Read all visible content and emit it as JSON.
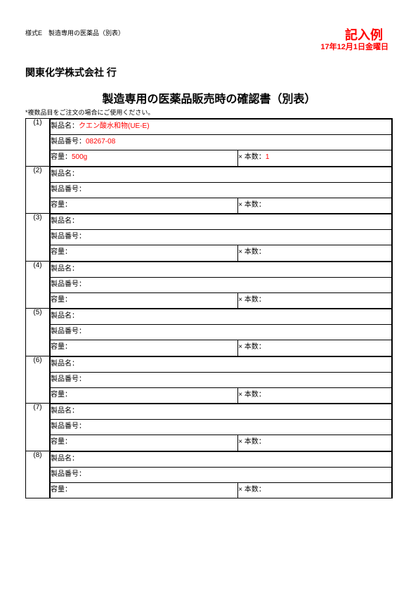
{
  "form_id": "様式E　製造専用の医薬品（別表）",
  "example_label": "記入例",
  "date": "17年12月1日金曜日",
  "addressee": "関東化学株式会社 行",
  "title": "製造専用の医薬品販売時の確認書（別表）",
  "note": "*複数品目をご注文の場合にご使用ください。",
  "labels": {
    "product_name": "製品名",
    "product_number": "製品番号",
    "volume": "容量",
    "quantity": "本数",
    "sep": "：",
    "times": "×"
  },
  "colors": {
    "red": "#ff0000",
    "black": "#000000",
    "background": "#ffffff"
  },
  "rows": [
    {
      "idx": "(1)",
      "name": "クエン酸水和物(UE-E)",
      "number": "08267-08",
      "volume": "500g",
      "qty": "1",
      "filled": true
    },
    {
      "idx": "(2)",
      "name": "",
      "number": "",
      "volume": "",
      "qty": "",
      "filled": false
    },
    {
      "idx": "(3)",
      "name": "",
      "number": "",
      "volume": "",
      "qty": "",
      "filled": false
    },
    {
      "idx": "(4)",
      "name": "",
      "number": "",
      "volume": "",
      "qty": "",
      "filled": false
    },
    {
      "idx": "(5)",
      "name": "",
      "number": "",
      "volume": "",
      "qty": "",
      "filled": false
    },
    {
      "idx": "(6)",
      "name": "",
      "number": "",
      "volume": "",
      "qty": "",
      "filled": false
    },
    {
      "idx": "(7)",
      "name": "",
      "number": "",
      "volume": "",
      "qty": "",
      "filled": false
    },
    {
      "idx": "(8)",
      "name": "",
      "number": "",
      "volume": "",
      "qty": "",
      "filled": false
    }
  ]
}
